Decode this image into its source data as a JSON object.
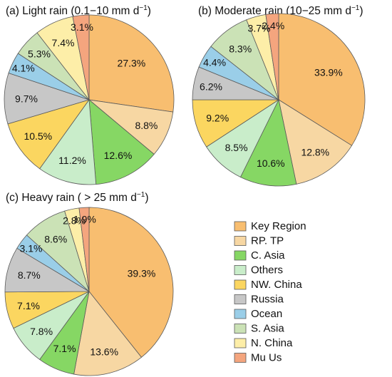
{
  "chart_data": [
    {
      "type": "pie",
      "title_main": "(a) Light rain (0.1−10 mm d",
      "title_sup": "−1",
      "title_end": ")",
      "categories": [
        "Key Region",
        "RP. TP",
        "C. Asia",
        "Others",
        "NW. China",
        "Russia",
        "Ocean",
        "S. Asia",
        "N. China",
        "Mu Us"
      ],
      "values": [
        27.3,
        8.8,
        12.6,
        11.2,
        10.5,
        9.7,
        4.1,
        5.3,
        7.4,
        3.1
      ],
      "labels": [
        "27.3%",
        "8.8%",
        "12.6%",
        "11.2%",
        "10.5%",
        "9.7%",
        "4.1%",
        "5.3%",
        "7.4%",
        "3.1%"
      ]
    },
    {
      "type": "pie",
      "title_main": "(b) Moderate rain (10−25 mm d",
      "title_sup": "−1",
      "title_end": ")",
      "categories": [
        "Key Region",
        "RP. TP",
        "C. Asia",
        "Others",
        "NW. China",
        "Russia",
        "Ocean",
        "S. Asia",
        "N. China",
        "Mu Us"
      ],
      "values": [
        33.9,
        12.8,
        10.6,
        8.5,
        9.2,
        6.2,
        4.4,
        8.3,
        3.7,
        2.4
      ],
      "labels": [
        "33.9%",
        "12.8%",
        "10.6%",
        "8.5%",
        "9.2%",
        "6.2%",
        "4.4%",
        "8.3%",
        "3.7%",
        "2.4%"
      ]
    },
    {
      "type": "pie",
      "title_main": "(c) Heavy rain ( > 25 mm d",
      "title_sup": "−1",
      "title_end": ")",
      "categories": [
        "Key Region",
        "RP. TP",
        "C. Asia",
        "Others",
        "NW. China",
        "Russia",
        "Ocean",
        "S. Asia",
        "N. China",
        "Mu Us"
      ],
      "values": [
        39.3,
        13.6,
        7.1,
        7.8,
        7.1,
        8.7,
        3.1,
        8.6,
        2.8,
        1.9
      ],
      "labels": [
        "39.3%",
        "13.6%",
        "7.1%",
        "7.8%",
        "7.1%",
        "8.7%",
        "3.1%",
        "8.6%",
        "2.8%",
        "1.9%"
      ]
    }
  ],
  "legend": {
    "placement": "bottom-right",
    "items": [
      {
        "label": "Key Region",
        "color": "#F8BE70"
      },
      {
        "label": "RP. TP",
        "color": "#F7D7A3"
      },
      {
        "label": "C. Asia",
        "color": "#86D764"
      },
      {
        "label": "Others",
        "color": "#C9EDCA"
      },
      {
        "label": "NW. China",
        "color": "#FBD660"
      },
      {
        "label": "Russia",
        "color": "#C7C7C7"
      },
      {
        "label": "Ocean",
        "color": "#9ACEE8"
      },
      {
        "label": "S. Asia",
        "color": "#CBE2B6"
      },
      {
        "label": "N. China",
        "color": "#FDEEA8"
      },
      {
        "label": "Mu Us",
        "color": "#F4A57E"
      }
    ]
  }
}
